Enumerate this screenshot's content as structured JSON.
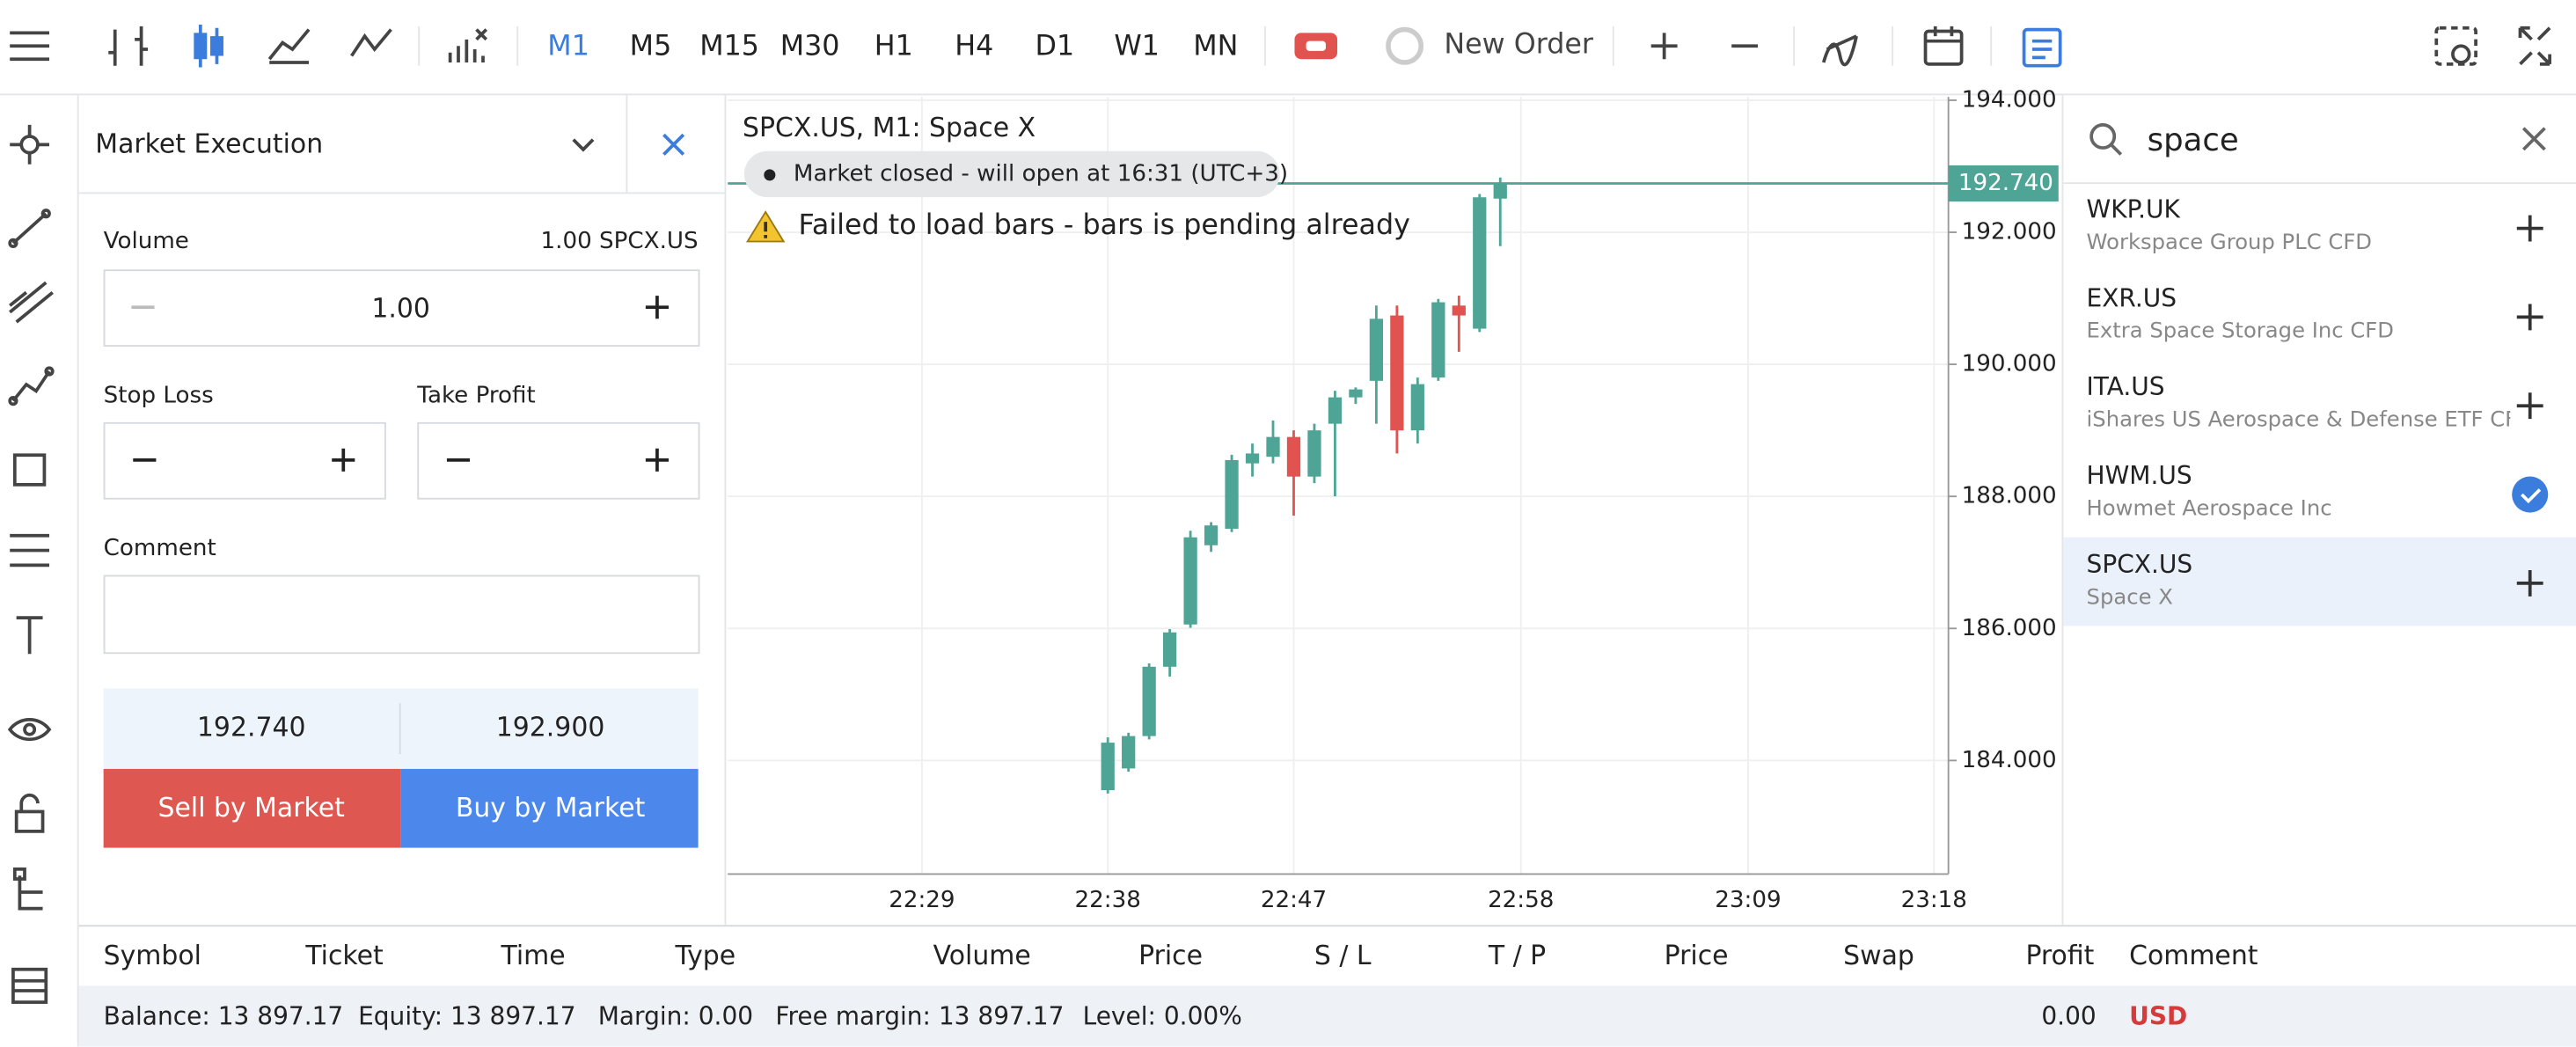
{
  "toolbar": {
    "timeframes": [
      "M1",
      "M5",
      "M15",
      "M30",
      "H1",
      "H4",
      "D1",
      "W1",
      "MN"
    ],
    "new_order": "New Order"
  },
  "order_panel": {
    "execution": "Market Execution",
    "volume_label": "Volume",
    "volume_info": "1.00 SPCX.US",
    "volume": "1.00",
    "stop_loss": "Stop Loss",
    "take_profit": "Take Profit",
    "comment": "Comment",
    "bid": "192.740",
    "ask": "192.900",
    "sell": "Sell by Market",
    "buy": "Buy by Market"
  },
  "chart_data": {
    "type": "candlestick",
    "title": "SPCX.US, M1: Space X",
    "market_status": "Market closed - will open at 16:31 (UTC+3)",
    "error": "Failed to load bars - bars is pending already",
    "x": [
      1358,
      1359,
      1360,
      1361,
      1362,
      1363,
      1364,
      1365,
      1366,
      1367,
      1368,
      1369,
      1370,
      1371,
      1372,
      1373,
      1374,
      1375,
      1376,
      1377
    ],
    "open": [
      183.55,
      183.88,
      184.37,
      185.42,
      186.06,
      187.26,
      187.51,
      188.5,
      188.6,
      188.9,
      188.3,
      189.1,
      189.5,
      189.75,
      190.74,
      189.0,
      189.8,
      190.89,
      190.54,
      192.51
    ],
    "high": [
      184.35,
      184.42,
      185.47,
      185.99,
      187.48,
      187.61,
      188.63,
      188.8,
      189.15,
      189.0,
      189.1,
      189.6,
      189.65,
      190.89,
      190.89,
      189.8,
      190.99,
      191.04,
      192.58,
      192.83
    ],
    "low": [
      183.5,
      183.83,
      184.32,
      185.27,
      186.01,
      187.16,
      187.46,
      188.3,
      188.5,
      187.71,
      188.2,
      188.0,
      189.4,
      189.1,
      188.65,
      188.8,
      189.75,
      190.19,
      190.49,
      191.79
    ],
    "close": [
      184.27,
      184.37,
      185.42,
      185.94,
      187.38,
      187.56,
      188.55,
      188.65,
      188.9,
      188.3,
      189.0,
      189.5,
      189.62,
      190.69,
      189.0,
      189.7,
      190.94,
      190.74,
      192.53,
      192.73
    ],
    "up_color": "#4ea595",
    "down_color": "#e0534f",
    "xlim": [
      1339.6,
      1398.7
    ],
    "ylim": [
      182.28,
      194.05
    ],
    "xticks": [
      {
        "value": 1349,
        "label": "22:29"
      },
      {
        "value": 1358,
        "label": "22:38"
      },
      {
        "value": 1367,
        "label": "22:47"
      },
      {
        "value": 1378,
        "label": "22:58"
      },
      {
        "value": 1389,
        "label": "23:09"
      },
      {
        "value": 1398,
        "label": "23:18"
      }
    ],
    "yticks": [
      {
        "value": 184,
        "label": "184.000"
      },
      {
        "value": 186,
        "label": "186.000"
      },
      {
        "value": 188,
        "label": "188.000"
      },
      {
        "value": 190,
        "label": "190.000"
      },
      {
        "value": 192,
        "label": "192.000"
      },
      {
        "value": 194,
        "label": "194.000"
      }
    ],
    "price_line": {
      "value": 192.74,
      "label": "192.740"
    },
    "grid": true
  },
  "watchlist": {
    "search": "space",
    "items": [
      {
        "symbol": "WKP.UK",
        "description": "Workspace Group PLC CFD"
      },
      {
        "symbol": "EXR.US",
        "description": "Extra Space Storage Inc CFD"
      },
      {
        "symbol": "ITA.US",
        "description": "iShares US Aerospace & Defense ETF CFD"
      },
      {
        "symbol": "HWM.US",
        "description": "Howmet Aerospace Inc"
      },
      {
        "symbol": "SPCX.US",
        "description": "Space X"
      }
    ]
  },
  "positions": {
    "columns": [
      "Symbol",
      "Ticket",
      "Time",
      "Type",
      "Volume",
      "Price",
      "S / L",
      "T / P",
      "Price",
      "Swap",
      "Profit",
      "Comment"
    ],
    "balance": [
      "Balance: 13 897.17",
      "Equity: 13 897.17",
      "Margin: 0.00",
      "Free margin: 13 897.17",
      "Level: 0.00%"
    ],
    "profit": "0.00",
    "currency": "USD"
  }
}
